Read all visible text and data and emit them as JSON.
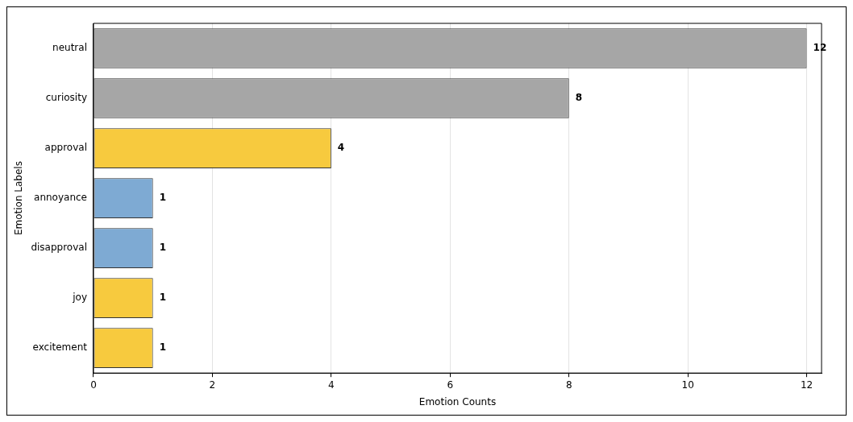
{
  "chart_data": {
    "type": "bar",
    "orientation": "horizontal",
    "xlabel": "Emotion Counts",
    "ylabel": "Emotion Labels",
    "categories": [
      "neutral",
      "curiosity",
      "approval",
      "annoyance",
      "disapproval",
      "joy",
      "excitement"
    ],
    "values": [
      12,
      8,
      4,
      1,
      1,
      1,
      1
    ],
    "colors": [
      "#a6a6a6",
      "#a6a6a6",
      "#f7ca3e",
      "#7eaad3",
      "#7eaad3",
      "#f7ca3e",
      "#f7ca3e"
    ],
    "xlim": [
      0,
      12.25
    ],
    "xticks": [
      0,
      2,
      4,
      6,
      8,
      10,
      12
    ],
    "grid": "x",
    "data_labels": true
  }
}
